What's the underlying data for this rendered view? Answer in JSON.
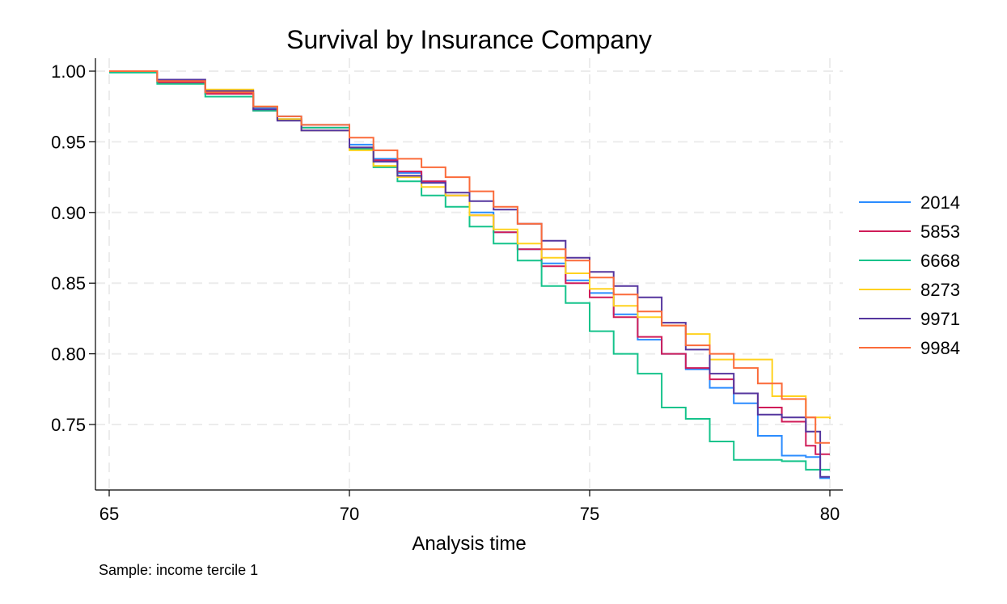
{
  "chart_data": {
    "type": "line",
    "title": "Survival by Insurance Company",
    "xlabel": "Analysis time",
    "ylabel": "",
    "note": "Sample: income tercile 1",
    "xlim": [
      65,
      80
    ],
    "ylim": [
      0.705,
      1.01
    ],
    "xticks": [
      65,
      70,
      75,
      80
    ],
    "xtick_labels": [
      "65",
      "70",
      "75",
      "80"
    ],
    "yticks": [
      0.75,
      0.8,
      0.85,
      0.9,
      0.95,
      1.0
    ],
    "ytick_labels": [
      "0.75",
      "0.80",
      "0.85",
      "0.90",
      "0.95",
      "1.00"
    ],
    "grid": true,
    "legend_position": "right",
    "step": true,
    "series": [
      {
        "name": "2014",
        "color": "#2b8cff",
        "points": [
          [
            65,
            1.0
          ],
          [
            66,
            0.992
          ],
          [
            67,
            0.984
          ],
          [
            68,
            0.974
          ],
          [
            68.5,
            0.968
          ],
          [
            69,
            0.962
          ],
          [
            70,
            0.948
          ],
          [
            70.5,
            0.938
          ],
          [
            71,
            0.928
          ],
          [
            71.5,
            0.922
          ],
          [
            72,
            0.912
          ],
          [
            72.5,
            0.9
          ],
          [
            73,
            0.886
          ],
          [
            73.5,
            0.874
          ],
          [
            74,
            0.864
          ],
          [
            74.5,
            0.852
          ],
          [
            75,
            0.843
          ],
          [
            75.5,
            0.828
          ],
          [
            76,
            0.81
          ],
          [
            76.5,
            0.8
          ],
          [
            77,
            0.789
          ],
          [
            77.5,
            0.776
          ],
          [
            78,
            0.765
          ],
          [
            78.5,
            0.742
          ],
          [
            79,
            0.728
          ],
          [
            79.5,
            0.727
          ],
          [
            79.8,
            0.712
          ],
          [
            80,
            0.712
          ]
        ]
      },
      {
        "name": "5853",
        "color": "#d01c58",
        "points": [
          [
            65,
            1.0
          ],
          [
            66,
            0.992
          ],
          [
            67,
            0.984
          ],
          [
            68,
            0.972
          ],
          [
            68.5,
            0.966
          ],
          [
            69,
            0.96
          ],
          [
            70,
            0.946
          ],
          [
            70.5,
            0.937
          ],
          [
            71,
            0.929
          ],
          [
            71.5,
            0.922
          ],
          [
            72,
            0.912
          ],
          [
            72.5,
            0.898
          ],
          [
            73,
            0.886
          ],
          [
            73.5,
            0.874
          ],
          [
            74,
            0.862
          ],
          [
            74.5,
            0.85
          ],
          [
            75,
            0.84
          ],
          [
            75.5,
            0.826
          ],
          [
            76,
            0.812
          ],
          [
            76.5,
            0.8
          ],
          [
            77,
            0.79
          ],
          [
            77.5,
            0.782
          ],
          [
            78,
            0.772
          ],
          [
            78.5,
            0.762
          ],
          [
            79,
            0.752
          ],
          [
            79.5,
            0.735
          ],
          [
            79.7,
            0.729
          ],
          [
            80,
            0.729
          ]
        ]
      },
      {
        "name": "6668",
        "color": "#15c38b",
        "points": [
          [
            65,
            0.999
          ],
          [
            66,
            0.991
          ],
          [
            67,
            0.982
          ],
          [
            68,
            0.972
          ],
          [
            68.5,
            0.966
          ],
          [
            69,
            0.96
          ],
          [
            70,
            0.945
          ],
          [
            70.5,
            0.932
          ],
          [
            71,
            0.922
          ],
          [
            71.5,
            0.912
          ],
          [
            72,
            0.904
          ],
          [
            72.5,
            0.89
          ],
          [
            73,
            0.878
          ],
          [
            73.5,
            0.866
          ],
          [
            74,
            0.848
          ],
          [
            74.5,
            0.836
          ],
          [
            75,
            0.816
          ],
          [
            75.5,
            0.8
          ],
          [
            76,
            0.786
          ],
          [
            76.5,
            0.762
          ],
          [
            77,
            0.754
          ],
          [
            77.5,
            0.738
          ],
          [
            78,
            0.725
          ],
          [
            78.5,
            0.725
          ],
          [
            79,
            0.724
          ],
          [
            79.5,
            0.718
          ],
          [
            80,
            0.718
          ]
        ]
      },
      {
        "name": "8273",
        "color": "#ffd21f",
        "points": [
          [
            65,
            1.0
          ],
          [
            66,
            0.994
          ],
          [
            67,
            0.987
          ],
          [
            68,
            0.975
          ],
          [
            68.5,
            0.966
          ],
          [
            69,
            0.958
          ],
          [
            70,
            0.944
          ],
          [
            70.5,
            0.933
          ],
          [
            71,
            0.925
          ],
          [
            71.5,
            0.918
          ],
          [
            72,
            0.912
          ],
          [
            72.5,
            0.898
          ],
          [
            73,
            0.888
          ],
          [
            73.5,
            0.878
          ],
          [
            74,
            0.868
          ],
          [
            74.5,
            0.857
          ],
          [
            75,
            0.846
          ],
          [
            75.5,
            0.834
          ],
          [
            76,
            0.826
          ],
          [
            76.5,
            0.82
          ],
          [
            77,
            0.814
          ],
          [
            77.5,
            0.796
          ],
          [
            78,
            0.796
          ],
          [
            78.5,
            0.796
          ],
          [
            78.8,
            0.77
          ],
          [
            79,
            0.77
          ],
          [
            79.5,
            0.755
          ],
          [
            80,
            0.754
          ]
        ]
      },
      {
        "name": "9971",
        "color": "#55359e",
        "points": [
          [
            65,
            1.0
          ],
          [
            66,
            0.994
          ],
          [
            67,
            0.986
          ],
          [
            68,
            0.973
          ],
          [
            68.5,
            0.965
          ],
          [
            69,
            0.958
          ],
          [
            70,
            0.946
          ],
          [
            70.5,
            0.936
          ],
          [
            71,
            0.926
          ],
          [
            71.5,
            0.921
          ],
          [
            72,
            0.914
          ],
          [
            72.5,
            0.908
          ],
          [
            73,
            0.902
          ],
          [
            73.5,
            0.892
          ],
          [
            74,
            0.88
          ],
          [
            74.5,
            0.868
          ],
          [
            75,
            0.858
          ],
          [
            75.5,
            0.848
          ],
          [
            76,
            0.84
          ],
          [
            76.5,
            0.822
          ],
          [
            77,
            0.803
          ],
          [
            77.5,
            0.786
          ],
          [
            78,
            0.772
          ],
          [
            78.5,
            0.757
          ],
          [
            79,
            0.755
          ],
          [
            79.5,
            0.745
          ],
          [
            79.8,
            0.713
          ],
          [
            80,
            0.713
          ]
        ]
      },
      {
        "name": "9984",
        "color": "#fb6b3a",
        "points": [
          [
            65,
            1.0
          ],
          [
            66,
            0.993
          ],
          [
            67,
            0.985
          ],
          [
            68,
            0.975
          ],
          [
            68.5,
            0.968
          ],
          [
            69,
            0.962
          ],
          [
            70,
            0.953
          ],
          [
            70.5,
            0.944
          ],
          [
            71,
            0.938
          ],
          [
            71.5,
            0.932
          ],
          [
            72,
            0.925
          ],
          [
            72.5,
            0.915
          ],
          [
            73,
            0.904
          ],
          [
            73.5,
            0.892
          ],
          [
            74,
            0.874
          ],
          [
            74.5,
            0.866
          ],
          [
            75,
            0.854
          ],
          [
            75.5,
            0.842
          ],
          [
            76,
            0.83
          ],
          [
            76.5,
            0.82
          ],
          [
            77,
            0.806
          ],
          [
            77.5,
            0.8
          ],
          [
            78,
            0.79
          ],
          [
            78.5,
            0.779
          ],
          [
            79,
            0.768
          ],
          [
            79.5,
            0.755
          ],
          [
            79.7,
            0.737
          ],
          [
            80,
            0.737
          ]
        ]
      }
    ]
  }
}
